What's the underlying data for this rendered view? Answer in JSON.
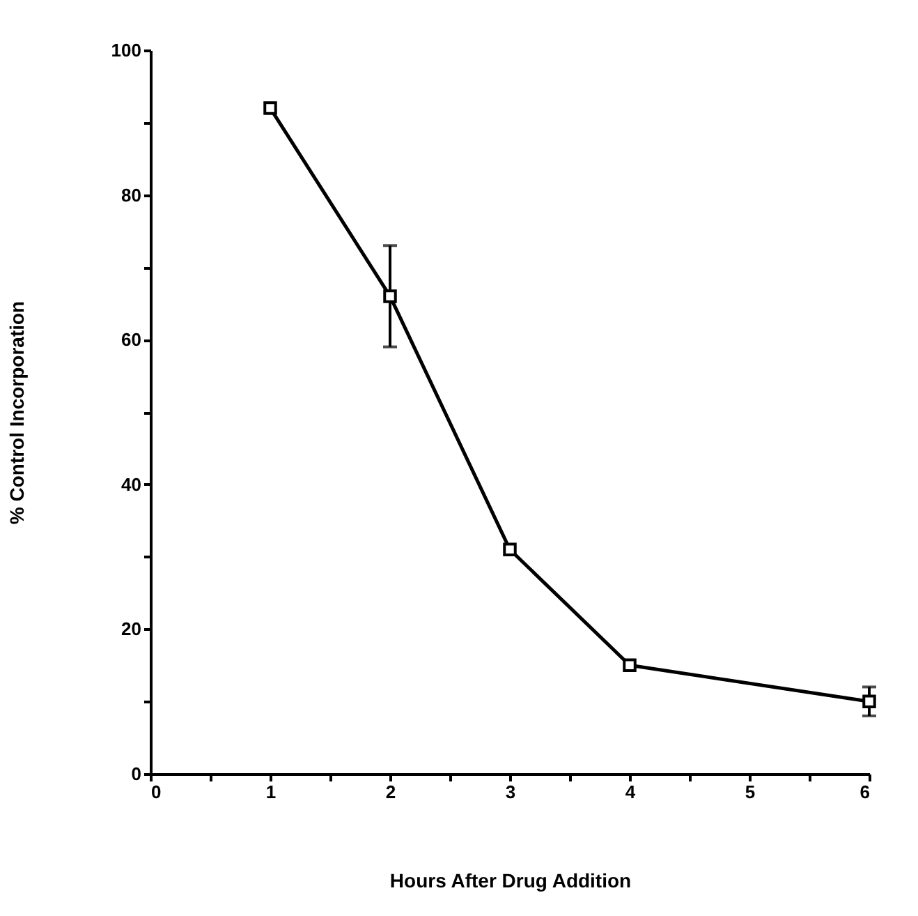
{
  "chart_data": {
    "type": "line",
    "xlabel": "Hours After Drug Addition",
    "ylabel": "% Control Incorporation",
    "x": [
      1,
      2,
      3,
      4,
      6
    ],
    "series": [
      {
        "color": "#000000",
        "values": [
          92,
          66,
          31,
          15,
          10
        ],
        "errors": [
          null,
          [
            59,
            73
          ],
          null,
          null,
          2
        ]
      }
    ],
    "xlim": [
      0,
      6
    ],
    "xticks": [
      0,
      {
        "value": 0.5,
        "label": null
      },
      1,
      {
        "value": 1.5,
        "label": null
      },
      2,
      {
        "value": 2.5,
        "label": null
      },
      3,
      {
        "value": 3.5,
        "label": null
      },
      4,
      {
        "value": 4.5,
        "label": null
      },
      5,
      {
        "value": 5.5,
        "label": null
      },
      6
    ],
    "ylim": [
      0,
      100
    ],
    "yticks": [
      0,
      {
        "value": 10,
        "label": null
      },
      20,
      {
        "value": 30,
        "label": null
      },
      40,
      {
        "value": 50,
        "label": null
      },
      60,
      {
        "value": 70,
        "label": null
      },
      80,
      {
        "value": 90,
        "label": null
      },
      100
    ],
    "grid": false,
    "marker": "square",
    "line_style": "solid"
  }
}
